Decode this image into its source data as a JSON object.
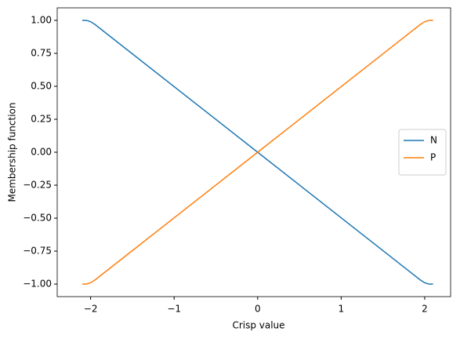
{
  "chart_data": {
    "type": "line",
    "xlabel": "Crisp value",
    "ylabel": "Membership function",
    "x": [
      -2.1,
      -2.05,
      -2.0,
      -1.95,
      0,
      1.95,
      2.0,
      2.05,
      2.1
    ],
    "series": [
      {
        "name": "N",
        "color": "#1f77b4",
        "values": [
          1,
          1,
          0.99,
          0.97,
          0,
          -0.97,
          -0.99,
          -1,
          -1
        ]
      },
      {
        "name": "P",
        "color": "#ff7f0e",
        "values": [
          -1,
          -1,
          -0.99,
          -0.97,
          0,
          0.97,
          0.99,
          1,
          1
        ]
      }
    ],
    "xlim": [
      -2.4,
      2.31
    ],
    "ylim": [
      -1.095,
      1.095
    ],
    "xticks": [
      {
        "value": -2,
        "label": "−2"
      },
      {
        "value": -1,
        "label": "−1"
      },
      0,
      1,
      2
    ],
    "yticks": [
      {
        "value": -1,
        "label": "−1.00"
      },
      {
        "value": -0.75,
        "label": "−0.75"
      },
      {
        "value": -0.5,
        "label": "−0.50"
      },
      {
        "value": -0.25,
        "label": "−0.25"
      },
      {
        "value": 0,
        "label": "0.00"
      },
      {
        "value": 0.25,
        "label": "0.25"
      },
      {
        "value": 0.5,
        "label": "0.50"
      },
      {
        "value": 0.75,
        "label": "0.75"
      },
      {
        "value": 1,
        "label": "1.00"
      }
    ],
    "legend": "center right",
    "grid": false
  }
}
